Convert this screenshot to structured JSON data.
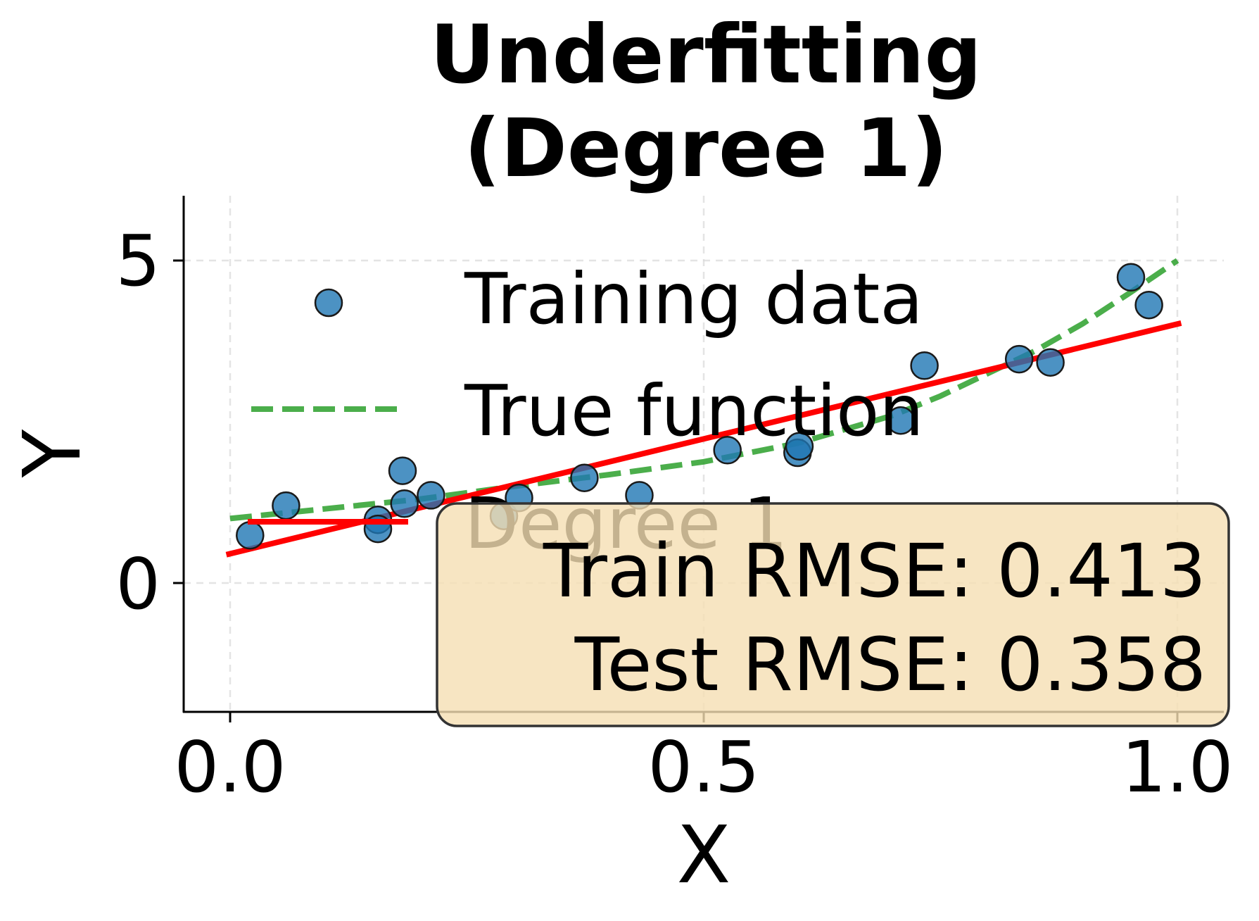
{
  "chart_data": {
    "type": "scatter",
    "title": "Underfitting\n(Degree 1)",
    "title_lines": [
      "Underfitting",
      "(Degree 1)"
    ],
    "xlabel": "X",
    "ylabel": "Y",
    "xlim": [
      -0.05,
      1.05
    ],
    "ylim": [
      -2.0,
      6.0
    ],
    "xticks": [
      0.0,
      0.5,
      1.0
    ],
    "xtick_labels": [
      "0.0",
      "0.5",
      "1.0"
    ],
    "yticks": [
      0,
      5
    ],
    "ytick_labels": [
      "0",
      "5"
    ],
    "grid": true,
    "legend_position": "upper left",
    "legend": [
      "Training data",
      "True function",
      "Degree 1"
    ],
    "series": [
      {
        "name": "Training data",
        "kind": "scatter",
        "color": "#1f77b4",
        "points": [
          [
            0.021,
            0.74
          ],
          [
            0.059,
            1.2
          ],
          [
            0.156,
            0.98
          ],
          [
            0.156,
            0.84
          ],
          [
            0.182,
            1.74
          ],
          [
            0.184,
            1.23
          ],
          [
            0.212,
            1.36
          ],
          [
            0.289,
            1.04
          ],
          [
            0.305,
            1.32
          ],
          [
            0.374,
            1.63
          ],
          [
            0.432,
            1.36
          ],
          [
            0.525,
            2.06
          ],
          [
            0.599,
            2.02
          ],
          [
            0.601,
            2.12
          ],
          [
            0.708,
            2.52
          ],
          [
            0.733,
            3.37
          ],
          [
            0.833,
            3.47
          ],
          [
            0.866,
            3.42
          ],
          [
            0.951,
            4.74
          ],
          [
            0.97,
            4.31
          ]
        ]
      },
      {
        "name": "True function",
        "kind": "line",
        "style": "dashed",
        "color": "#2ca02c",
        "points": [
          [
            0.0,
            1.0
          ],
          [
            0.1,
            1.15
          ],
          [
            0.2,
            1.3
          ],
          [
            0.25,
            1.4
          ],
          [
            0.3,
            1.5
          ],
          [
            0.4,
            1.68
          ],
          [
            0.5,
            1.88
          ],
          [
            0.6,
            2.17
          ],
          [
            0.7,
            2.6
          ],
          [
            0.75,
            2.9
          ],
          [
            0.8,
            3.25
          ],
          [
            0.85,
            3.6
          ],
          [
            0.9,
            4.02
          ],
          [
            0.95,
            4.5
          ],
          [
            1.0,
            5.0
          ]
        ]
      },
      {
        "name": "Degree 1",
        "kind": "line",
        "style": "solid",
        "color": "#ff0000",
        "points": [
          [
            -0.004,
            0.44
          ],
          [
            1.004,
            4.03
          ]
        ]
      }
    ],
    "annotations": [
      "Train RMSE: 0.413",
      "Test RMSE: 0.358"
    ],
    "metrics": {
      "train_rmse": 0.413,
      "test_rmse": 0.358
    }
  },
  "title": {
    "line1": "Underfitting",
    "line2": "(Degree 1)"
  },
  "axes": {
    "xlabel": "X",
    "ylabel": "Y"
  },
  "legend": {
    "training_data": "Training data",
    "true_function": "True function",
    "degree": "Degree 1"
  },
  "metrics_box": {
    "line1": "Train RMSE: 0.413",
    "line2": "Test RMSE: 0.358",
    "fill": "#f5deb3",
    "border": "#333333"
  },
  "colors": {
    "scatter": "#1f77b4",
    "true_function": "#2ca02c",
    "fit": "#ff0000",
    "grid": "#d9d9d9"
  }
}
